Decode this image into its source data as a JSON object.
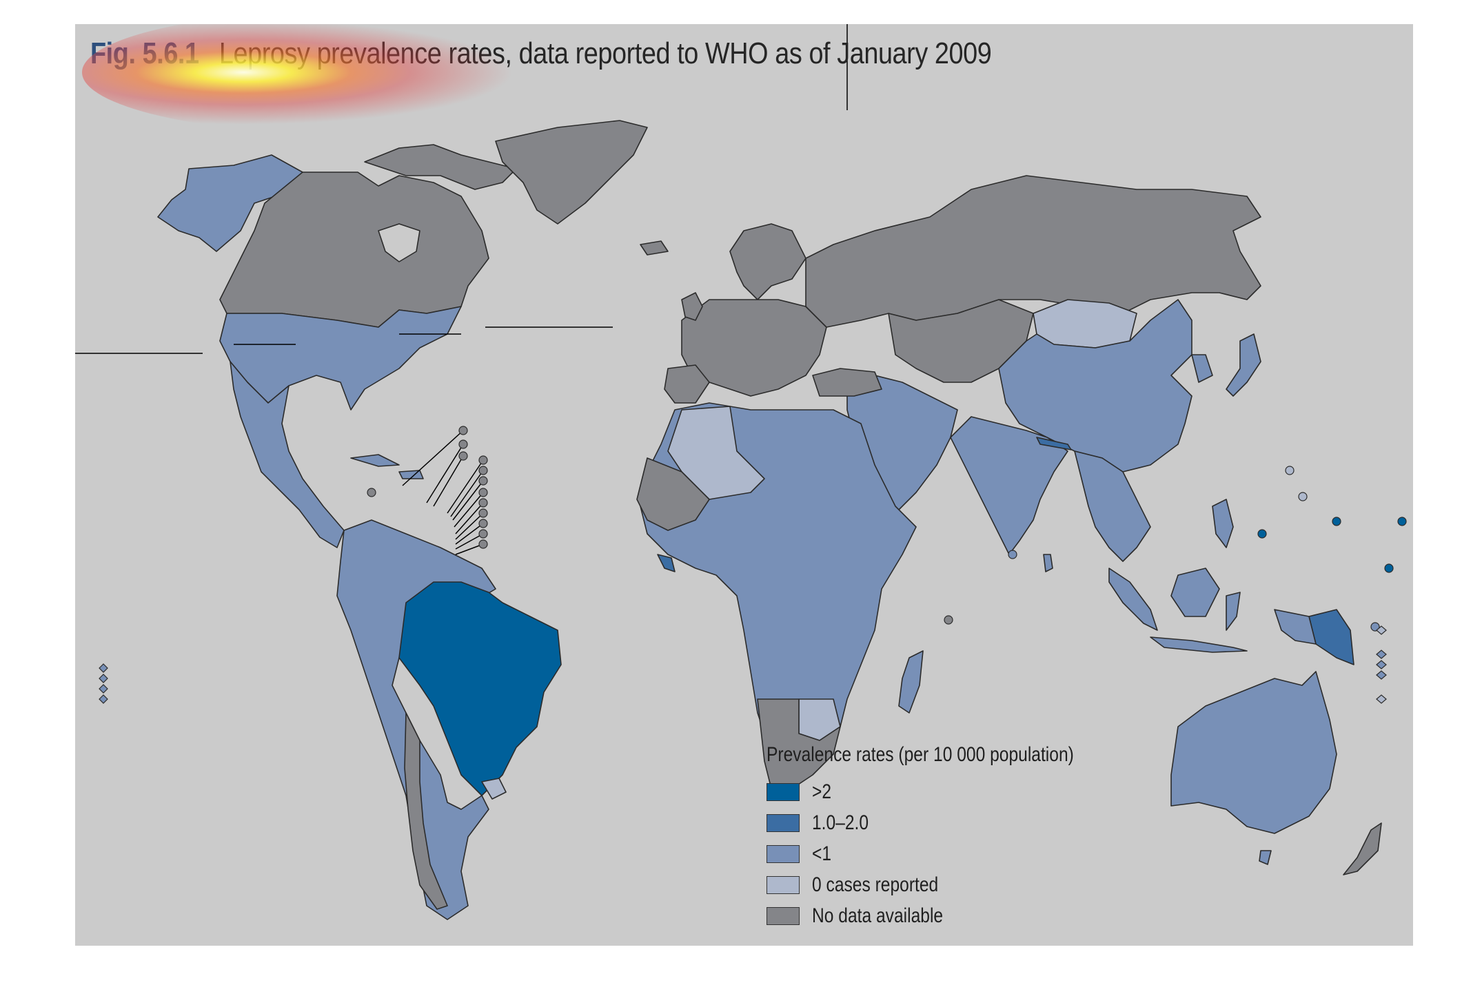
{
  "figure": {
    "number": "Fig. 5.6.1",
    "title": "Leprosy prevalence rates, data reported to WHO as of January 2009"
  },
  "legend": {
    "title": "Prevalence rates (per 10 000 population)",
    "items": [
      {
        "label": ">2",
        "color": "#00609a"
      },
      {
        "label": "1.0–2.0",
        "color": "#3b6da3"
      },
      {
        "label": "<1",
        "color": "#7890b7"
      },
      {
        "label": "0 cases reported",
        "color": "#aeb8cc"
      },
      {
        "label": "No data available",
        "color": "#848589"
      }
    ]
  },
  "colors": {
    "background": "#cbcbcb",
    "border": "#2b2b2b"
  },
  "map_regions": [
    {
      "name": "North America (Alaska)",
      "category": "<1"
    },
    {
      "name": "Canada",
      "category": "No data available"
    },
    {
      "name": "Greenland",
      "category": "No data available"
    },
    {
      "name": "United States",
      "category": "<1"
    },
    {
      "name": "Mexico and Central America",
      "category": "<1"
    },
    {
      "name": "Brazil",
      "category": ">2"
    },
    {
      "name": "South America (other)",
      "category": "<1"
    },
    {
      "name": "Chile",
      "category": "No data available"
    },
    {
      "name": "Uruguay",
      "category": "0 cases reported"
    },
    {
      "name": "Europe",
      "category": "No data available"
    },
    {
      "name": "Russia",
      "category": "No data available"
    },
    {
      "name": "Mongolia",
      "category": "0 cases reported"
    },
    {
      "name": "China",
      "category": "<1"
    },
    {
      "name": "Japan",
      "category": "<1"
    },
    {
      "name": "Central Asia",
      "category": "No data available"
    },
    {
      "name": "Middle East",
      "category": "<1"
    },
    {
      "name": "Algeria",
      "category": "0 cases reported"
    },
    {
      "name": "Western Sahara / Mali / Mauritania",
      "category": "No data available"
    },
    {
      "name": "Africa",
      "category": "<1"
    },
    {
      "name": "Botswana",
      "category": "0 cases reported"
    },
    {
      "name": "Namibia / South Africa",
      "category": "No data available"
    },
    {
      "name": "India and South Asia",
      "category": "<1"
    },
    {
      "name": "Nepal",
      "category": "1.0–2.0"
    },
    {
      "name": "Liberia",
      "category": "1.0–2.0"
    },
    {
      "name": "Southeast Asia",
      "category": "<1"
    },
    {
      "name": "Papua New Guinea",
      "category": "1.0–2.0"
    },
    {
      "name": "Australia",
      "category": "<1"
    },
    {
      "name": "New Zealand",
      "category": "No data available"
    },
    {
      "name": "Pacific islands (Micronesia, Marshall Is.)",
      "category": ">2"
    }
  ]
}
